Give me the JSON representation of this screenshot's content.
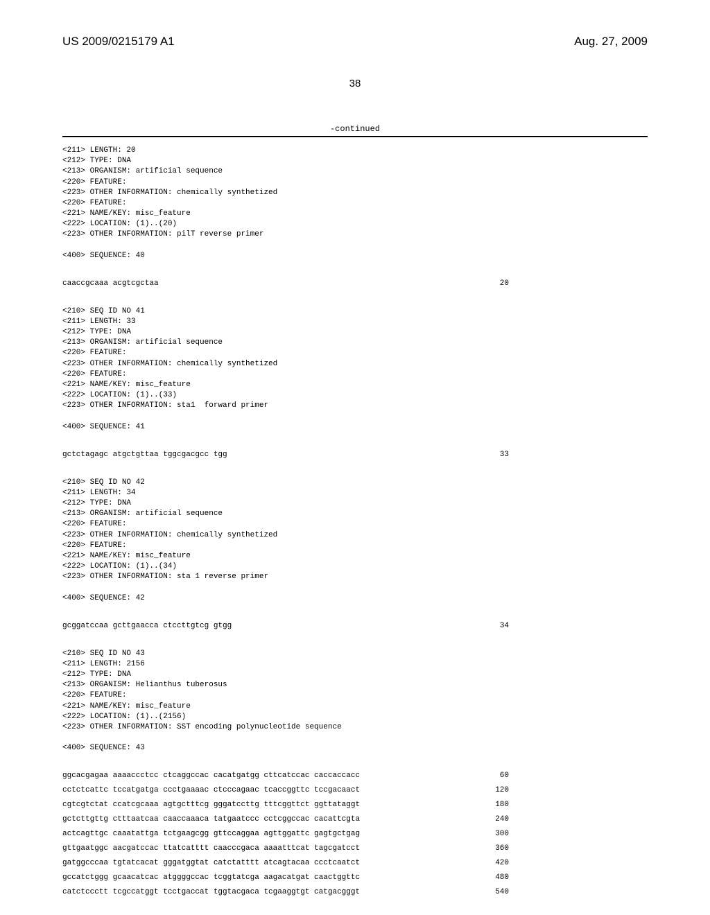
{
  "header": {
    "pub_num": "US 2009/0215179 A1",
    "pub_date": "Aug. 27, 2009"
  },
  "page_number": "38",
  "continued_label": "-continued",
  "entries": [
    {
      "meta": "<211> LENGTH: 20\n<212> TYPE: DNA\n<213> ORGANISM: artificial sequence\n<220> FEATURE:\n<223> OTHER INFORMATION: chemically synthetized\n<220> FEATURE:\n<221> NAME/KEY: misc_feature\n<222> LOCATION: (1)..(20)\n<223> OTHER INFORMATION: pilT reverse primer\n\n<400> SEQUENCE: 40",
      "rows": [
        {
          "seq": "caaccgcaaa acgtcgctaa",
          "pos": "20"
        }
      ]
    },
    {
      "meta": "<210> SEQ ID NO 41\n<211> LENGTH: 33\n<212> TYPE: DNA\n<213> ORGANISM: artificial sequence\n<220> FEATURE:\n<223> OTHER INFORMATION: chemically synthetized\n<220> FEATURE:\n<221> NAME/KEY: misc_feature\n<222> LOCATION: (1)..(33)\n<223> OTHER INFORMATION: sta1  forward primer\n\n<400> SEQUENCE: 41",
      "rows": [
        {
          "seq": "gctctagagc atgctgttaa tggcgacgcc tgg",
          "pos": "33"
        }
      ]
    },
    {
      "meta": "<210> SEQ ID NO 42\n<211> LENGTH: 34\n<212> TYPE: DNA\n<213> ORGANISM: artificial sequence\n<220> FEATURE:\n<223> OTHER INFORMATION: chemically synthetized\n<220> FEATURE:\n<221> NAME/KEY: misc_feature\n<222> LOCATION: (1)..(34)\n<223> OTHER INFORMATION: sta 1 reverse primer\n\n<400> SEQUENCE: 42",
      "rows": [
        {
          "seq": "gcggatccaa gcttgaacca ctccttgtcg gtgg",
          "pos": "34"
        }
      ]
    },
    {
      "meta": "<210> SEQ ID NO 43\n<211> LENGTH: 2156\n<212> TYPE: DNA\n<213> ORGANISM: Helianthus tuberosus\n<220> FEATURE:\n<221> NAME/KEY: misc_feature\n<222> LOCATION: (1)..(2156)\n<223> OTHER INFORMATION: SST encoding polynucleotide sequence\n\n<400> SEQUENCE: 43",
      "rows": [
        {
          "seq": "ggcacgagaa aaaaccctcc ctcaggccac cacatgatgg cttcatccac caccaccacc",
          "pos": "60"
        },
        {
          "seq": "cctctcattc tccatgatga ccctgaaaac ctcccagaac tcaccggttc tccgacaact",
          "pos": "120"
        },
        {
          "seq": "cgtcgtctat ccatcgcaaa agtgctttcg gggatccttg tttcggttct ggttataggt",
          "pos": "180"
        },
        {
          "seq": "gctcttgttg ctttaatcaa caaccaaaca tatgaatccc cctcggccac cacattcgta",
          "pos": "240"
        },
        {
          "seq": "actcagttgc caaatattga tctgaagcgg gttccaggaa agttggattc gagtgctgag",
          "pos": "300"
        },
        {
          "seq": "gttgaatggc aacgatccac ttatcatttt caacccgaca aaaatttcat tagcgatcct",
          "pos": "360"
        },
        {
          "seq": "gatggcccaa tgtatcacat gggatggtat catctatttt atcagtacaa ccctcaatct",
          "pos": "420"
        },
        {
          "seq": "gccatctggg gcaacatcac atggggccac tcggtatcga aagacatgat caactggttc",
          "pos": "480"
        },
        {
          "seq": "catctccctt tcgccatggt tcctgaccat tggtacgaca tcgaaggtgt catgacgggt",
          "pos": "540"
        }
      ]
    }
  ]
}
